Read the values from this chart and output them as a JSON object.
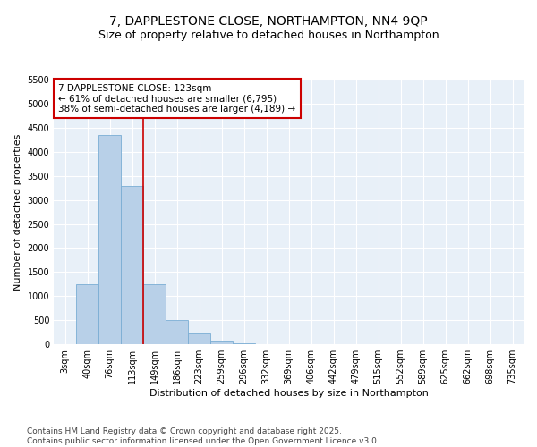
{
  "title": "7, DAPPLESTONE CLOSE, NORTHAMPTON, NN4 9QP",
  "subtitle": "Size of property relative to detached houses in Northampton",
  "xlabel": "Distribution of detached houses by size in Northampton",
  "ylabel": "Number of detached properties",
  "categories": [
    "3sqm",
    "40sqm",
    "76sqm",
    "113sqm",
    "149sqm",
    "186sqm",
    "223sqm",
    "259sqm",
    "296sqm",
    "332sqm",
    "369sqm",
    "406sqm",
    "442sqm",
    "479sqm",
    "515sqm",
    "552sqm",
    "589sqm",
    "625sqm",
    "662sqm",
    "698sqm",
    "735sqm"
  ],
  "values": [
    0,
    1250,
    4350,
    3300,
    1250,
    500,
    220,
    70,
    20,
    5,
    0,
    0,
    0,
    0,
    0,
    0,
    0,
    0,
    0,
    0,
    0
  ],
  "bar_color": "#b8d0e8",
  "bar_edge_color": "#7aadd4",
  "vline_x_index": 3,
  "vline_x_offset": 0.5,
  "vline_color": "#cc0000",
  "annotation_title": "7 DAPPLESTONE CLOSE: 123sqm",
  "annotation_line1": "← 61% of detached houses are smaller (6,795)",
  "annotation_line2": "38% of semi-detached houses are larger (4,189) →",
  "annotation_box_color": "#cc0000",
  "ylim": [
    0,
    5500
  ],
  "yticks": [
    0,
    500,
    1000,
    1500,
    2000,
    2500,
    3000,
    3500,
    4000,
    4500,
    5000,
    5500
  ],
  "bg_color": "#e8f0f8",
  "grid_color": "#ffffff",
  "footer1": "Contains HM Land Registry data © Crown copyright and database right 2025.",
  "footer2": "Contains public sector information licensed under the Open Government Licence v3.0.",
  "title_fontsize": 10,
  "subtitle_fontsize": 9,
  "axis_label_fontsize": 8,
  "tick_fontsize": 7,
  "annotation_fontsize": 7.5,
  "footer_fontsize": 6.5
}
